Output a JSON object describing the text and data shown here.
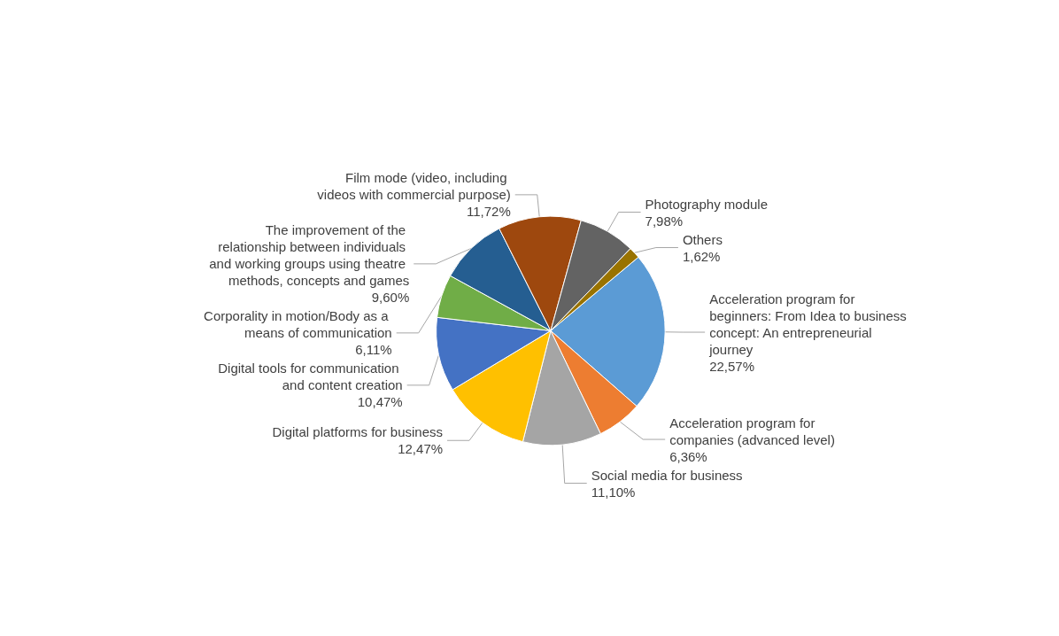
{
  "chart_data": {
    "type": "pie",
    "categories": [
      "Acceleration program for beginners: From Idea to business concept: An entrepreneurial journey",
      "Acceleration program for companies (advanced level)",
      "Social media for business",
      "Digital platforms for business",
      "Digital tools for communication and content creation",
      "Corporality in motion/Body as a means of communication",
      "The improvement of the relationship between individuals and working groups using theatre methods, concepts and games",
      "Film mode (video, including videos with commercial purpose)",
      "Photography module",
      "Others"
    ],
    "values": [
      22.57,
      6.36,
      11.1,
      12.47,
      10.47,
      6.11,
      9.6,
      11.72,
      7.98,
      1.62
    ],
    "value_labels": [
      "22,57%",
      "6,36%",
      "11,10%",
      "12,47%",
      "10,47%",
      "6,11%",
      "9,60%",
      "11,72%",
      "7,98%",
      "1,62%"
    ],
    "colors": [
      "#5b9bd5",
      "#ed7d31",
      "#a5a5a5",
      "#ffc000",
      "#4472c4",
      "#70ad47",
      "#255e91",
      "#9e480e",
      "#636363",
      "#997300"
    ],
    "legend": false
  }
}
